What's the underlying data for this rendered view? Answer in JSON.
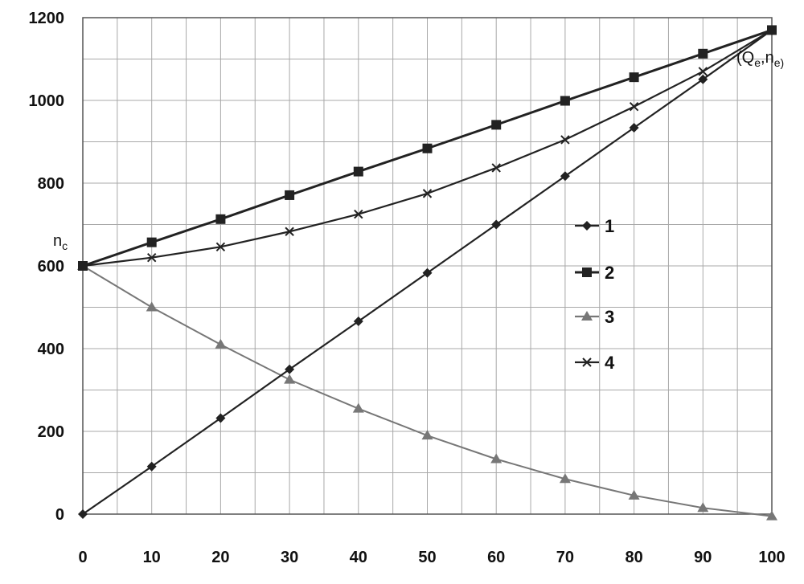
{
  "chart_data": {
    "type": "line",
    "title": "",
    "xlabel": "",
    "ylabel": "",
    "xlim": [
      0,
      100
    ],
    "ylim": [
      0,
      1200
    ],
    "x_ticks": [
      "0",
      "10",
      "20",
      "30",
      "40",
      "50",
      "60",
      "70",
      "80",
      "90",
      "100"
    ],
    "y_ticks": [
      "0",
      "200",
      "400",
      "600",
      "800",
      "1000",
      "1200"
    ],
    "grid": true,
    "legend_position": "right-center",
    "x": [
      0,
      10,
      20,
      30,
      40,
      50,
      60,
      70,
      80,
      90,
      100
    ],
    "series": [
      {
        "name": "1",
        "marker": "diamond",
        "color": "#222222",
        "values": [
          0,
          115,
          232,
          350,
          466,
          583,
          700,
          817,
          934,
          1051,
          1170
        ]
      },
      {
        "name": "2",
        "marker": "square",
        "color": "#222222",
        "values": [
          600,
          657,
          713,
          771,
          828,
          884,
          941,
          999,
          1056,
          1113,
          1170
        ]
      },
      {
        "name": "3",
        "marker": "triangle",
        "color": "#777777",
        "values": [
          600,
          500,
          410,
          325,
          255,
          190,
          133,
          85,
          45,
          15,
          -5
        ]
      },
      {
        "name": "4",
        "marker": "x",
        "color": "#222222",
        "values": [
          600,
          620,
          646,
          683,
          725,
          775,
          837,
          905,
          985,
          1070,
          1170
        ]
      }
    ],
    "annotations": [
      {
        "main": "n",
        "sub": "c",
        "at_x": 0,
        "at_y": 600
      },
      {
        "parts": [
          "(Q",
          "e",
          ",n",
          "e)"
        ],
        "at_x": 100,
        "at_y": 1170
      }
    ]
  }
}
